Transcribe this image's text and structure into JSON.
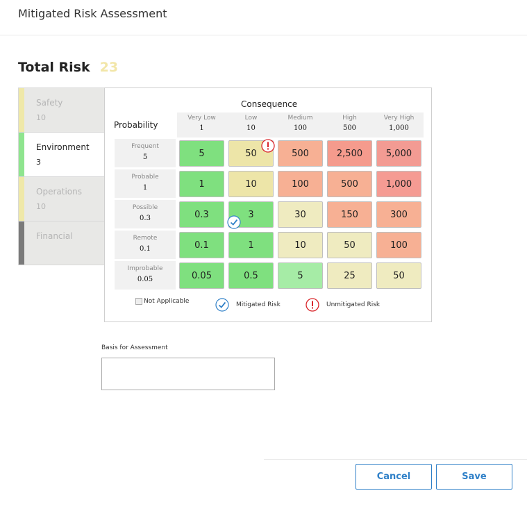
{
  "header": {
    "title": "Mitigated Risk Assessment"
  },
  "total_risk": {
    "label": "Total Risk",
    "value": "23"
  },
  "tabs": [
    {
      "name": "Safety",
      "score": "10",
      "color": "#efe8a8",
      "active": false
    },
    {
      "name": "Environment",
      "score": "3",
      "color": "#8fe58f",
      "active": true
    },
    {
      "name": "Operations",
      "score": "10",
      "color": "#efe8a8",
      "active": false
    },
    {
      "name": "Financial",
      "score": "",
      "color": "#7a7a7a",
      "active": false
    }
  ],
  "matrix": {
    "consequence_label": "Consequence",
    "probability_label": "Probability",
    "columns": [
      {
        "name": "Very Low",
        "value": "1"
      },
      {
        "name": "Low",
        "value": "10"
      },
      {
        "name": "Medium",
        "value": "100"
      },
      {
        "name": "High",
        "value": "500"
      },
      {
        "name": "Very High",
        "value": "1,000"
      }
    ],
    "rows": [
      {
        "name": "Frequent",
        "value": "5",
        "cells": [
          "5",
          "50",
          "500",
          "2,500",
          "5,000"
        ]
      },
      {
        "name": "Probable",
        "value": "1",
        "cells": [
          "1",
          "10",
          "100",
          "500",
          "1,000"
        ]
      },
      {
        "name": "Possible",
        "value": "0.3",
        "cells": [
          "0.3",
          "3",
          "30",
          "150",
          "300"
        ]
      },
      {
        "name": "Remote",
        "value": "0.1",
        "cells": [
          "0.1",
          "1",
          "10",
          "50",
          "100"
        ]
      },
      {
        "name": "Improbable",
        "value": "0.05",
        "cells": [
          "0.05",
          "0.5",
          "5",
          "25",
          "50"
        ]
      }
    ],
    "cell_colors": [
      [
        "#7fe07f",
        "#ede5a8",
        "#f7b094",
        "#f59b8d",
        "#f39b93"
      ],
      [
        "#7fe07f",
        "#ede5a8",
        "#f7b094",
        "#f7b094",
        "#f59b93"
      ],
      [
        "#7fe07f",
        "#7fe07f",
        "#efebc0",
        "#f7b094",
        "#f7b094"
      ],
      [
        "#7fe07f",
        "#7fe07f",
        "#efebc0",
        "#efebc0",
        "#f7b094"
      ],
      [
        "#7fe07f",
        "#7fe07f",
        "#a6eca6",
        "#efebc0",
        "#efebc0"
      ]
    ],
    "unmitigated": {
      "row": 0,
      "col": 1
    },
    "mitigated": {
      "row": 2,
      "col": 1
    }
  },
  "legend": {
    "not_applicable": "Not Applicable",
    "mitigated": "Mitigated Risk",
    "unmitigated": "Unmitigated Risk"
  },
  "colors": {
    "accent": "#2f80c8",
    "unmitigated": "#d9262b"
  },
  "basis": {
    "label": "Basis for Assessment",
    "value": ""
  },
  "buttons": {
    "cancel": "Cancel",
    "save": "Save"
  }
}
